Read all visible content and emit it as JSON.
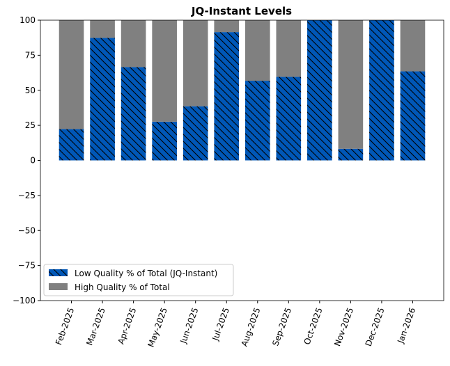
{
  "chart_data": {
    "type": "bar",
    "stacked": true,
    "title": "JQ-Instant Levels",
    "xlabel": "",
    "ylabel": "",
    "categories": [
      "Feb-2025",
      "Mar-2025",
      "Apr-2025",
      "May-2025",
      "Jun-2025",
      "Jul-2025",
      "Aug-2025",
      "Sep-2025",
      "Oct-2025",
      "Nov-2025",
      "Dec-2025",
      "Jan-2026"
    ],
    "series": [
      {
        "name": "Low Quality % of Total (JQ-Instant)",
        "color": "#0057b7",
        "hatch": "\\",
        "values": [
          22.3,
          87.4,
          66.6,
          27.6,
          38.6,
          91.5,
          56.8,
          59.6,
          100,
          8.3,
          100,
          63.5
        ]
      },
      {
        "name": "High Quality % of Total",
        "color": "#808080",
        "values": [
          77.7,
          12.6,
          33.4,
          72.4,
          61.4,
          8.5,
          43.2,
          40.4,
          0,
          91.7,
          0,
          36.5
        ]
      }
    ],
    "ylim": [
      -100,
      100
    ],
    "yticks": [
      -100,
      -75,
      -50,
      -25,
      0,
      25,
      50,
      75,
      100
    ],
    "grid": false,
    "legend": "lower-left"
  }
}
